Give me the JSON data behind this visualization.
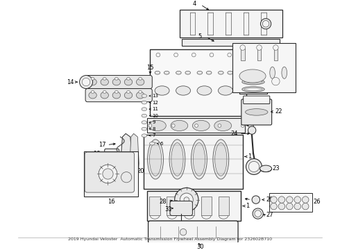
{
  "bg_color": "#ffffff",
  "lc": "#2a2a2a",
  "gc": "#555555",
  "fc": "#f4f4f4",
  "fc2": "#e8e8e8",
  "figsize": [
    4.9,
    3.6
  ],
  "dpi": 100,
  "label_fs": 6.0,
  "title": "2019 Hyundai Veloster",
  "part_num": "232602B710",
  "bottom_label": "2019 Hyundai Veloster  Automatic Transmission Flywheel Assembly Diagram for 232602B710"
}
